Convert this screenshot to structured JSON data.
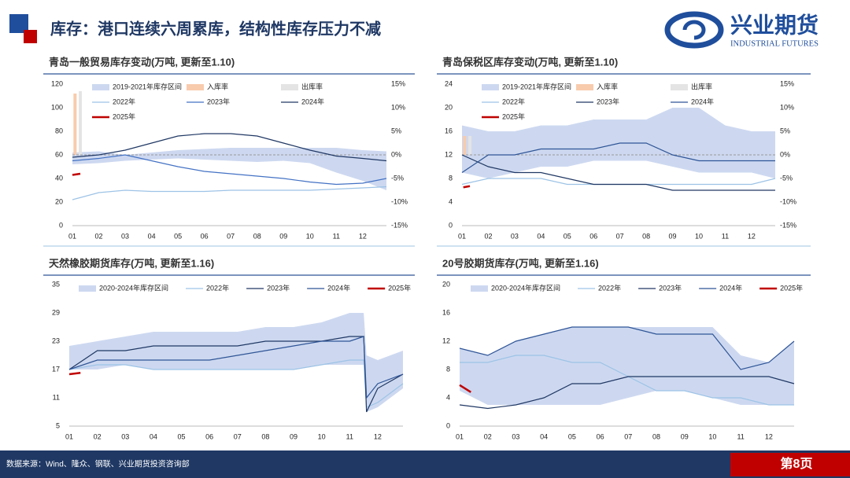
{
  "header": {
    "title": "库存：港口连续六周累库，结构性库存压力不减",
    "logo": "兴业期货",
    "logo_en": "INDUSTRIAL FUTURES"
  },
  "footer": {
    "source": "数据来源：Wind、隆众、钢联、兴业期货投资咨询部",
    "page": "第8页"
  },
  "chart_data": [
    {
      "type": "line",
      "title": "青岛一般贸易库存变动(万吨, 更新至1.10)",
      "x": [
        1,
        2,
        3,
        4,
        5,
        6,
        7,
        8,
        9,
        10,
        11,
        12,
        12.9
      ],
      "xlim": [
        1,
        12.9
      ],
      "xticks": [
        {
          "value": 1,
          "label": "01"
        },
        {
          "value": 2,
          "label": "02"
        },
        {
          "value": 3,
          "label": "03"
        },
        {
          "value": 4,
          "label": "04"
        },
        {
          "value": 5,
          "label": "05"
        },
        {
          "value": 6,
          "label": "06"
        },
        {
          "value": 7,
          "label": "07"
        },
        {
          "value": 8,
          "label": "08"
        },
        {
          "value": 9,
          "label": "09"
        },
        {
          "value": 10,
          "label": "10"
        },
        {
          "value": 11,
          "label": "11"
        },
        {
          "value": 12,
          "label": "12"
        }
      ],
      "ylim": [
        0,
        120
      ],
      "yticks": [
        0,
        20,
        40,
        60,
        80,
        100,
        120
      ],
      "y2lim": [
        -15,
        15
      ],
      "y2ticks": [
        {
          "value": 15,
          "label": "15%"
        },
        {
          "value": 10,
          "label": "10%"
        },
        {
          "value": 5,
          "label": "5%"
        },
        {
          "value": 0,
          "label": "0%"
        },
        {
          "value": -5,
          "label": "-5%"
        },
        {
          "value": -10,
          "label": "-10%"
        },
        {
          "value": -15,
          "label": "-15%"
        }
      ],
      "reference_line": {
        "axis": "y2",
        "value": 0
      },
      "series": [
        {
          "name": "2019-2021年库存区间",
          "kind": "band",
          "color": "#cdd8f0",
          "low": [
            52,
            53,
            55,
            56,
            57,
            56,
            55,
            54,
            55,
            53,
            45,
            38,
            30
          ],
          "high": [
            62,
            63,
            60,
            62,
            64,
            65,
            66,
            66,
            66,
            66,
            66,
            64,
            63
          ]
        },
        {
          "name": "入库率",
          "kind": "bar",
          "axis": "y2",
          "color": "#f8cbad",
          "x": [
            1.1
          ],
          "values": [
            13
          ]
        },
        {
          "name": "出库率",
          "kind": "bar",
          "axis": "y2",
          "color": "#e4e4e4",
          "x": [
            1.3
          ],
          "values": [
            13.5
          ]
        },
        {
          "name": "2022年",
          "kind": "line",
          "color": "#9dc3e6",
          "values": [
            22,
            28,
            30,
            29,
            29,
            29,
            30,
            30,
            30,
            30,
            31,
            32,
            33
          ]
        },
        {
          "name": "2023年",
          "kind": "line",
          "color": "#4472c4",
          "values": [
            55,
            57,
            60,
            55,
            50,
            46,
            44,
            42,
            40,
            37,
            35,
            36,
            40
          ]
        },
        {
          "name": "2024年",
          "kind": "line",
          "color": "#203864",
          "values": [
            58,
            60,
            64,
            70,
            76,
            78,
            78,
            76,
            70,
            64,
            59,
            57,
            55
          ]
        },
        {
          "name": "2025年",
          "kind": "line",
          "color": "#c00000",
          "line_width": 2.5,
          "x": [
            1,
            1.3
          ],
          "values": [
            43,
            44
          ]
        }
      ]
    },
    {
      "type": "line",
      "title": "青岛保税区库存变动(万吨, 更新至1.10)",
      "x": [
        1,
        2,
        3,
        4,
        5,
        6,
        7,
        8,
        9,
        10,
        11,
        12,
        12.9
      ],
      "xlim": [
        1,
        12.9
      ],
      "xticks": [
        {
          "value": 1,
          "label": "01"
        },
        {
          "value": 2,
          "label": "02"
        },
        {
          "value": 3,
          "label": "03"
        },
        {
          "value": 4,
          "label": "04"
        },
        {
          "value": 5,
          "label": "05"
        },
        {
          "value": 6,
          "label": "06"
        },
        {
          "value": 7,
          "label": "07"
        },
        {
          "value": 8,
          "label": "08"
        },
        {
          "value": 9,
          "label": "09"
        },
        {
          "value": 10,
          "label": "10"
        },
        {
          "value": 11,
          "label": "11"
        },
        {
          "value": 12,
          "label": "12"
        }
      ],
      "ylim": [
        0,
        24
      ],
      "yticks": [
        0,
        4,
        8,
        12,
        16,
        20,
        24
      ],
      "y2lim": [
        -15,
        15
      ],
      "y2ticks": [
        {
          "value": 15,
          "label": "15%"
        },
        {
          "value": 10,
          "label": "10%"
        },
        {
          "value": 5,
          "label": "5%"
        },
        {
          "value": 0,
          "label": "0%"
        },
        {
          "value": -5,
          "label": "-5%"
        },
        {
          "value": -10,
          "label": "-10%"
        },
        {
          "value": -15,
          "label": "-15%"
        }
      ],
      "reference_line": {
        "axis": "y2",
        "value": 0
      },
      "series": [
        {
          "name": "2019-2021年库存区间",
          "kind": "band",
          "color": "#cdd8f0",
          "low": [
            9,
            8,
            9,
            10,
            10,
            11,
            11,
            11,
            10,
            9,
            9,
            9,
            8
          ],
          "high": [
            17,
            16,
            16,
            17,
            17,
            18,
            18,
            18,
            20,
            20,
            17,
            16,
            16
          ]
        },
        {
          "name": "入库率",
          "kind": "bar",
          "axis": "y2",
          "color": "#f8cbad",
          "x": [
            1.1
          ],
          "values": [
            4
          ]
        },
        {
          "name": "出库率",
          "kind": "bar",
          "axis": "y2",
          "color": "#e4e4e4",
          "x": [
            1.3
          ],
          "values": [
            4
          ]
        },
        {
          "name": "2022年",
          "kind": "line",
          "color": "#9dc3e6",
          "values": [
            7,
            8,
            8,
            8,
            7,
            7,
            7,
            7,
            7,
            7,
            7,
            7,
            8
          ]
        },
        {
          "name": "2023年",
          "kind": "line",
          "color": "#203864",
          "values": [
            12,
            10,
            9,
            9,
            8,
            7,
            7,
            7,
            6,
            6,
            6,
            6,
            6
          ]
        },
        {
          "name": "2024年",
          "kind": "line",
          "color": "#2f5597",
          "values": [
            9,
            12,
            12,
            13,
            13,
            13,
            14,
            14,
            12,
            11,
            11,
            11,
            11
          ]
        },
        {
          "name": "2025年",
          "kind": "line",
          "color": "#c00000",
          "line_width": 2.5,
          "x": [
            1.05,
            1.3
          ],
          "values": [
            6.5,
            6.7
          ]
        }
      ]
    },
    {
      "type": "line",
      "title": "天然橡胶期货库存(万吨, 更新至1.16)",
      "x": [
        1,
        2,
        3,
        4,
        5,
        6,
        7,
        8,
        9,
        10,
        11,
        11.5,
        11.6,
        12,
        12.9
      ],
      "xlim": [
        1,
        12.9
      ],
      "xticks": [
        {
          "value": 1,
          "label": "01"
        },
        {
          "value": 2,
          "label": "02"
        },
        {
          "value": 3,
          "label": "03"
        },
        {
          "value": 4,
          "label": "04"
        },
        {
          "value": 5,
          "label": "05"
        },
        {
          "value": 6,
          "label": "06"
        },
        {
          "value": 7,
          "label": "07"
        },
        {
          "value": 8,
          "label": "08"
        },
        {
          "value": 9,
          "label": "09"
        },
        {
          "value": 10,
          "label": "10"
        },
        {
          "value": 11,
          "label": "11"
        },
        {
          "value": 12,
          "label": "12"
        }
      ],
      "ylim": [
        5,
        35
      ],
      "yticks": [
        5,
        11,
        17,
        23,
        29,
        35
      ],
      "series": [
        {
          "name": "2020-2024年库存区间",
          "kind": "band",
          "color": "#cdd8f0",
          "low": [
            17,
            17,
            18,
            17,
            17,
            17,
            17,
            17,
            17,
            18,
            18,
            18,
            8,
            9,
            13
          ],
          "high": [
            22,
            23,
            24,
            25,
            25,
            25,
            25,
            26,
            26,
            27,
            29,
            29,
            20,
            19,
            21
          ]
        },
        {
          "name": "2022年",
          "kind": "line",
          "color": "#9dc3e6",
          "values": [
            17,
            18,
            18,
            17,
            17,
            17,
            17,
            17,
            17,
            18,
            19,
            19,
            9,
            10,
            14
          ]
        },
        {
          "name": "2023年",
          "kind": "line",
          "color": "#203864",
          "values": [
            17,
            21,
            21,
            22,
            22,
            22,
            22,
            23,
            23,
            23,
            24,
            24,
            8,
            13,
            16
          ]
        },
        {
          "name": "2024年",
          "kind": "line",
          "color": "#2f5597",
          "values": [
            17,
            19,
            19,
            19,
            19,
            19,
            20,
            21,
            22,
            23,
            23,
            24,
            11,
            14,
            16
          ]
        },
        {
          "name": "2025年",
          "kind": "line",
          "color": "#c00000",
          "line_width": 2.5,
          "x": [
            1,
            1.4
          ],
          "values": [
            16,
            16.3
          ]
        }
      ]
    },
    {
      "type": "line",
      "title": "20号胶期货库存(万吨, 更新至1.16)",
      "x": [
        1,
        2,
        3,
        4,
        5,
        6,
        7,
        8,
        9,
        10,
        11,
        12,
        12.9
      ],
      "xlim": [
        1,
        12.9
      ],
      "xticks": [
        {
          "value": 1,
          "label": "01"
        },
        {
          "value": 2,
          "label": "02"
        },
        {
          "value": 3,
          "label": "03"
        },
        {
          "value": 4,
          "label": "04"
        },
        {
          "value": 5,
          "label": "05"
        },
        {
          "value": 6,
          "label": "06"
        },
        {
          "value": 7,
          "label": "07"
        },
        {
          "value": 8,
          "label": "08"
        },
        {
          "value": 9,
          "label": "09"
        },
        {
          "value": 10,
          "label": "10"
        },
        {
          "value": 11,
          "label": "11"
        },
        {
          "value": 12,
          "label": "12"
        }
      ],
      "ylim": [
        0,
        20
      ],
      "yticks": [
        0,
        4,
        8,
        12,
        16,
        20
      ],
      "series": [
        {
          "name": "2020-2024年库存区间",
          "kind": "band",
          "color": "#cdd8f0",
          "low": [
            5,
            3,
            3,
            3,
            3,
            3,
            4,
            5,
            5,
            4,
            3,
            3,
            3
          ],
          "high": [
            11,
            10,
            12,
            13,
            14,
            14,
            14,
            14,
            14,
            14,
            10,
            9,
            12
          ]
        },
        {
          "name": "2022年",
          "kind": "line",
          "color": "#9dc3e6",
          "values": [
            9,
            9,
            10,
            10,
            9,
            9,
            7,
            5,
            5,
            4,
            4,
            3,
            3
          ]
        },
        {
          "name": "2023年",
          "kind": "line",
          "color": "#203864",
          "values": [
            3,
            2.5,
            3,
            4,
            6,
            6,
            7,
            7,
            7,
            7,
            7,
            7,
            6
          ]
        },
        {
          "name": "2024年",
          "kind": "line",
          "color": "#2f5597",
          "values": [
            11,
            10,
            12,
            13,
            14,
            14,
            14,
            13,
            13,
            13,
            8,
            9,
            12
          ]
        },
        {
          "name": "2025年",
          "kind": "line",
          "color": "#c00000",
          "line_width": 2.5,
          "x": [
            1,
            1.4
          ],
          "values": [
            5.8,
            4.8
          ]
        }
      ]
    }
  ]
}
